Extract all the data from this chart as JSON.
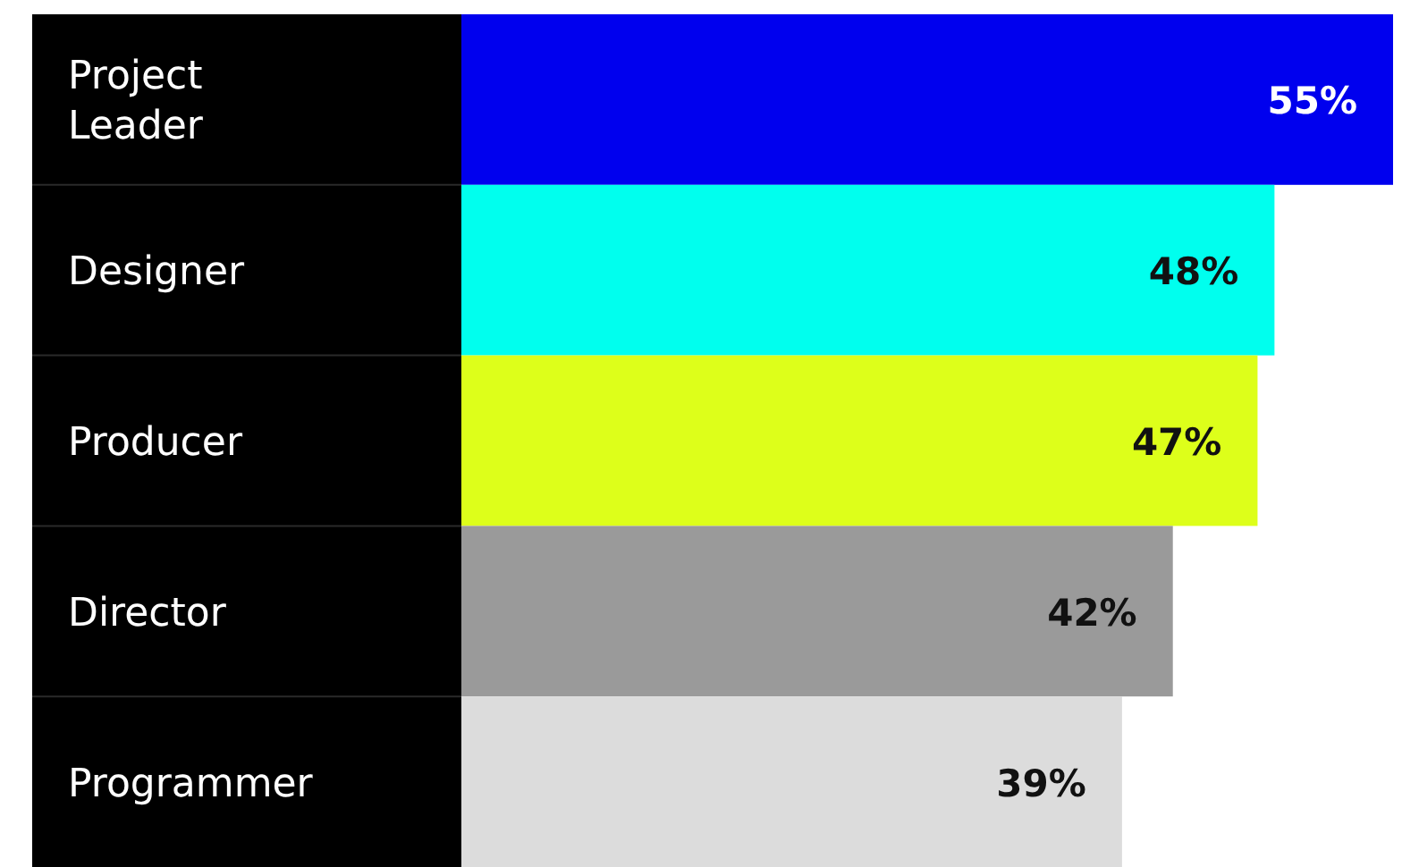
{
  "chart_data": {
    "type": "bar",
    "orientation": "horizontal",
    "categories": [
      "Project Leader",
      "Designer",
      "Producer",
      "Director",
      "Programmer"
    ],
    "values": [
      55,
      48,
      47,
      42,
      39
    ],
    "value_labels": [
      "55%",
      "48%",
      "47%",
      "42%",
      "39%"
    ],
    "colors": [
      "#0000ee",
      "#00ffee",
      "#ddff1a",
      "#9a9a9a",
      "#dcdcdc"
    ]
  }
}
